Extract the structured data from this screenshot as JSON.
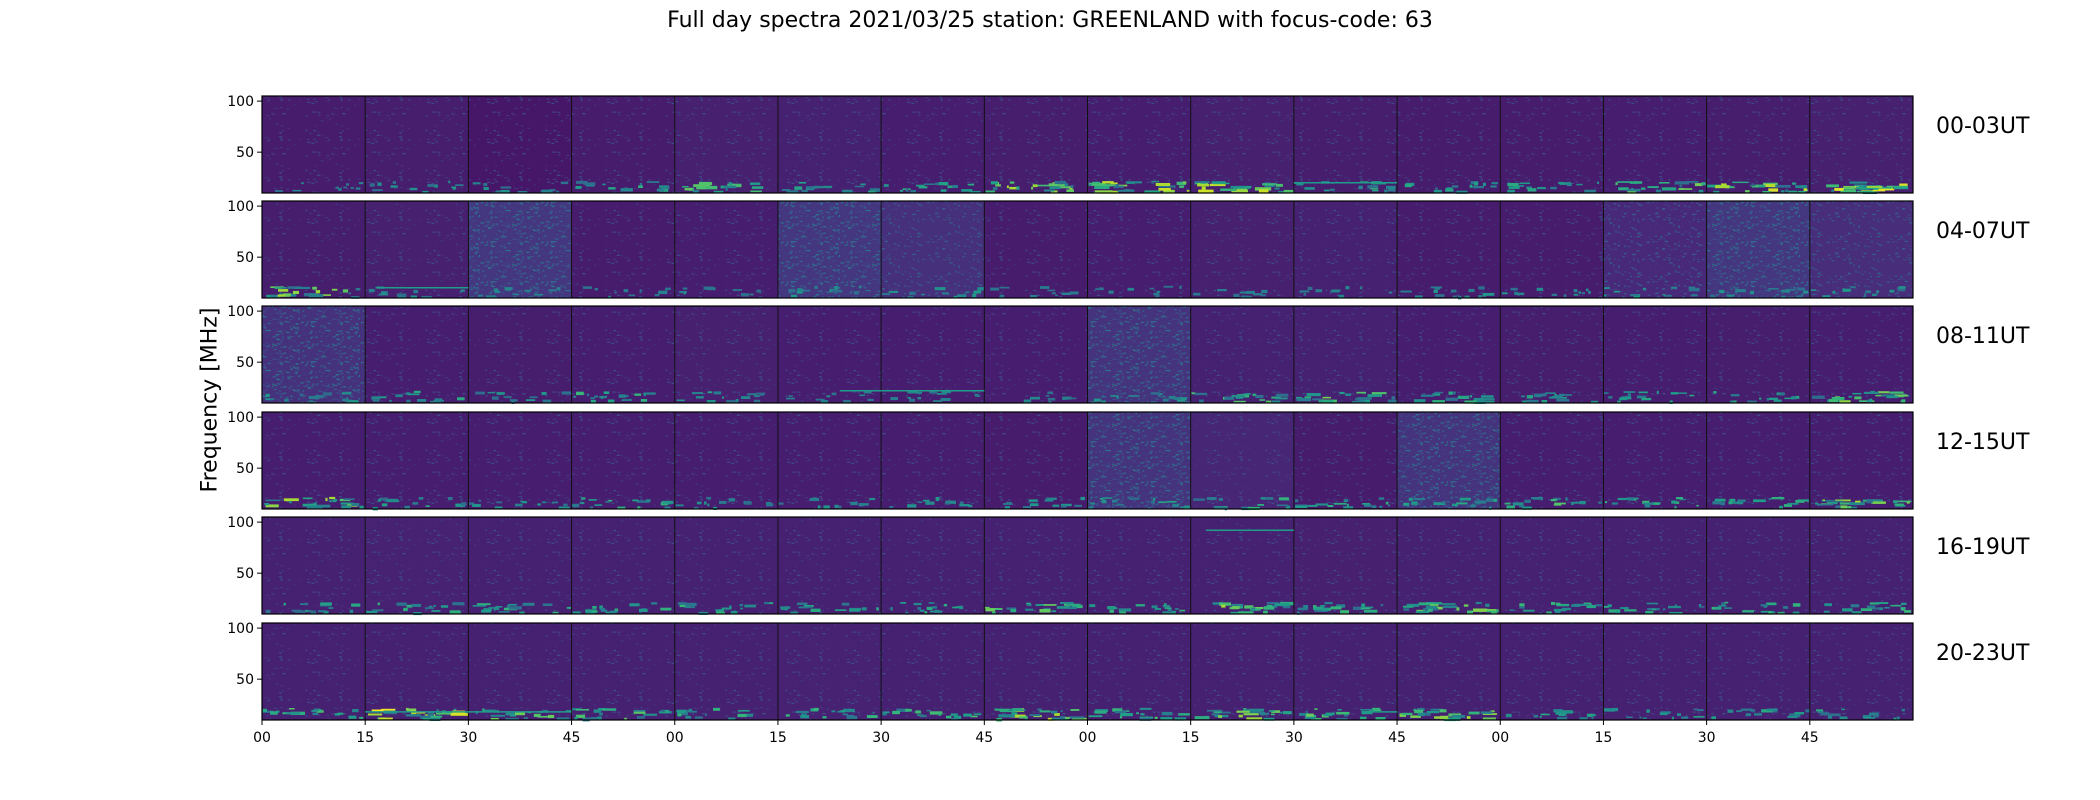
{
  "chart_data": {
    "type": "heatmap",
    "title": "Full day spectra 2021/03/25 station: GREENLAND with focus-code: 63",
    "ylabel": "Frequency [MHz]",
    "xlabel": "",
    "yticks": [
      50,
      100
    ],
    "ylim": [
      10,
      105
    ],
    "colormap": "viridis",
    "xticks": [
      "00",
      "15",
      "30",
      "45",
      "00",
      "15",
      "30",
      "45",
      "00",
      "15",
      "30",
      "45",
      "00",
      "15",
      "30",
      "45"
    ],
    "panels_per_row": 16,
    "rows": [
      {
        "label": "00-03UT",
        "noise": [
          0.22,
          0.23,
          0.18,
          0.22,
          0.25,
          0.26,
          0.24,
          0.23,
          0.24,
          0.25,
          0.23,
          0.22,
          0.22,
          0.24,
          0.23,
          0.25
        ],
        "rfi": [
          0.2,
          0.3,
          0.3,
          0.5,
          0.7,
          0.4,
          0.5,
          0.8,
          1.0,
          0.9,
          0.5,
          0.4,
          0.4,
          0.7,
          0.9,
          1.0
        ],
        "lines": [
          {
            "panel": 10,
            "freq": 20,
            "from": 0.0,
            "to": 1.0
          }
        ]
      },
      {
        "label": "04-07UT",
        "noise": [
          0.23,
          0.25,
          0.46,
          0.22,
          0.24,
          0.46,
          0.38,
          0.22,
          0.24,
          0.25,
          0.26,
          0.22,
          0.22,
          0.33,
          0.45,
          0.36
        ],
        "rfi": [
          0.8,
          0.3,
          0.2,
          0.2,
          0.2,
          0.3,
          0.3,
          0.2,
          0.2,
          0.2,
          0.2,
          0.4,
          0.3,
          0.3,
          0.3,
          0.3
        ],
        "lines": [
          {
            "panel": 1,
            "freq": 20,
            "from": 0.1,
            "to": 1.0
          }
        ]
      },
      {
        "label": "08-11UT",
        "noise": [
          0.4,
          0.24,
          0.23,
          0.24,
          0.25,
          0.24,
          0.24,
          0.24,
          0.42,
          0.26,
          0.26,
          0.24,
          0.23,
          0.24,
          0.23,
          0.24
        ],
        "rfi": [
          0.3,
          0.4,
          0.3,
          0.5,
          0.4,
          0.2,
          0.3,
          0.2,
          0.3,
          0.6,
          0.7,
          0.5,
          0.5,
          0.4,
          0.4,
          0.8
        ],
        "lines": [
          {
            "panel": 5,
            "freq": 22,
            "from": 0.6,
            "to": 1.0
          },
          {
            "panel": 6,
            "freq": 22,
            "from": 0.0,
            "to": 1.0
          }
        ]
      },
      {
        "label": "12-15UT",
        "noise": [
          0.24,
          0.24,
          0.24,
          0.24,
          0.24,
          0.24,
          0.24,
          0.22,
          0.42,
          0.3,
          0.22,
          0.42,
          0.24,
          0.24,
          0.24,
          0.24
        ],
        "rfi": [
          0.8,
          0.4,
          0.3,
          0.5,
          0.3,
          0.3,
          0.3,
          0.3,
          0.4,
          0.5,
          0.5,
          0.4,
          0.6,
          0.5,
          0.5,
          0.9
        ],
        "lines": []
      },
      {
        "label": "16-19UT",
        "noise": [
          0.26,
          0.27,
          0.26,
          0.26,
          0.26,
          0.26,
          0.26,
          0.26,
          0.26,
          0.26,
          0.25,
          0.26,
          0.26,
          0.26,
          0.26,
          0.26
        ],
        "rfi": [
          0.5,
          0.5,
          0.6,
          0.5,
          0.5,
          0.4,
          0.5,
          0.7,
          0.5,
          0.8,
          0.6,
          0.8,
          0.5,
          0.5,
          0.5,
          0.5
        ],
        "lines": [
          {
            "panel": 9,
            "freq": 92,
            "from": 0.15,
            "to": 1.0
          }
        ]
      },
      {
        "label": "20-23UT",
        "noise": [
          0.26,
          0.26,
          0.26,
          0.26,
          0.26,
          0.27,
          0.26,
          0.26,
          0.26,
          0.26,
          0.26,
          0.26,
          0.26,
          0.26,
          0.26,
          0.26
        ],
        "rfi": [
          0.6,
          1.0,
          0.7,
          0.7,
          0.5,
          0.5,
          0.6,
          0.9,
          0.6,
          0.8,
          0.7,
          0.8,
          0.4,
          0.4,
          0.4,
          0.4
        ],
        "lines": [
          {
            "panel": 1,
            "freq": 18,
            "from": 0.0,
            "to": 1.0
          },
          {
            "panel": 2,
            "freq": 18,
            "from": 0.0,
            "to": 1.0
          },
          {
            "panel": 10,
            "freq": 18,
            "from": 0.7,
            "to": 1.0
          }
        ]
      }
    ]
  }
}
